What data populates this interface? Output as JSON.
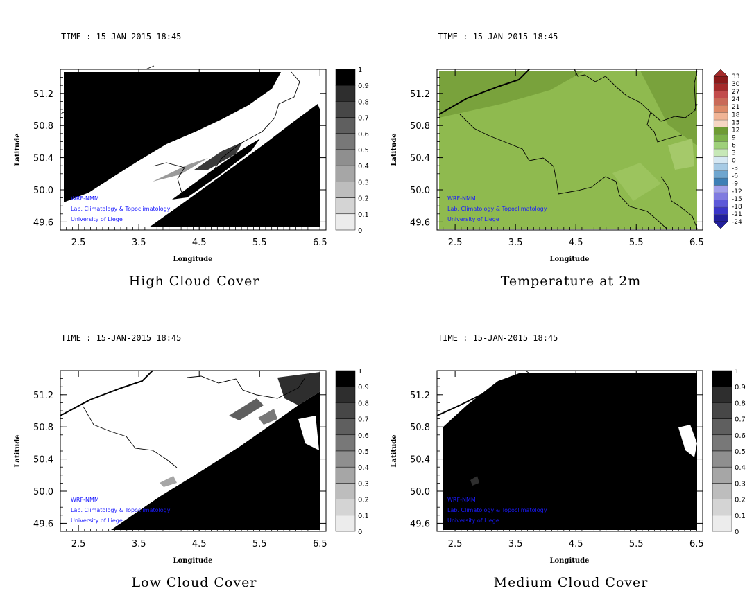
{
  "chart_data": [
    {
      "type": "heatmap",
      "time_label": "TIME : 15-JAN-2015 18:45",
      "title": "High Cloud Cover",
      "xlabel": "Longitude",
      "ylabel": "Latitude",
      "x_ticks": [
        "2.5",
        "3.5",
        "4.5",
        "5.5",
        "6.5"
      ],
      "y_ticks": [
        "51.2",
        "50.8",
        "50.4",
        "50.0",
        "49.6"
      ],
      "xlim": [
        2.2,
        6.6
      ],
      "ylim": [
        49.5,
        51.5
      ],
      "colorbar_ticks": [
        "1",
        "0.9",
        "0.8",
        "0.7",
        "0.6",
        "0.5",
        "0.4",
        "0.3",
        "0.2",
        "0.1",
        "0"
      ],
      "credits": [
        "WRF-NMM",
        "Lab. Climatology & Topoclimatology",
        "University of Liege"
      ]
    },
    {
      "type": "heatmap",
      "time_label": "TIME : 15-JAN-2015 18:45",
      "title": "Temperature at 2m",
      "xlabel": "Longitude",
      "ylabel": "Latitude",
      "x_ticks": [
        "2.5",
        "3.5",
        "4.5",
        "5.5",
        "6.5"
      ],
      "y_ticks": [
        "51.2",
        "50.8",
        "50.4",
        "50.0",
        "49.6"
      ],
      "xlim": [
        2.2,
        6.6
      ],
      "ylim": [
        49.5,
        51.5
      ],
      "colorbar_ticks": [
        "33",
        "30",
        "27",
        "24",
        "21",
        "18",
        "15",
        "12",
        "9",
        "6",
        "3",
        "0",
        "-3",
        "-6",
        "-9",
        "-12",
        "-15",
        "-18",
        "-21",
        "-24"
      ],
      "credits": [
        "WRF-NMM",
        "Lab. Climatology & Topoclimatology",
        "University of Liege"
      ]
    },
    {
      "type": "heatmap",
      "time_label": "TIME : 15-JAN-2015 18:45",
      "title": "Low Cloud Cover",
      "xlabel": "Longitude",
      "ylabel": "Latitude",
      "x_ticks": [
        "2.5",
        "3.5",
        "4.5",
        "5.5",
        "6.5"
      ],
      "y_ticks": [
        "51.2",
        "50.8",
        "50.4",
        "50.0",
        "49.6"
      ],
      "xlim": [
        2.2,
        6.6
      ],
      "ylim": [
        49.5,
        51.5
      ],
      "colorbar_ticks": [
        "1",
        "0.9",
        "0.8",
        "0.7",
        "0.6",
        "0.5",
        "0.4",
        "0.3",
        "0.2",
        "0.1",
        "0"
      ],
      "credits": [
        "WRF-NMM",
        "Lab. Climatology & Topoclimatology",
        "University of Liege"
      ]
    },
    {
      "type": "heatmap",
      "time_label": "TIME : 15-JAN-2015 18:45",
      "title": "Medium Cloud Cover",
      "xlabel": "Longitude",
      "ylabel": "Latitude",
      "x_ticks": [
        "2.5",
        "3.5",
        "4.5",
        "5.5",
        "6.5"
      ],
      "y_ticks": [
        "51.2",
        "50.8",
        "50.4",
        "50.0",
        "49.6"
      ],
      "xlim": [
        2.2,
        6.6
      ],
      "ylim": [
        49.5,
        51.5
      ],
      "colorbar_ticks": [
        "1",
        "0.9",
        "0.8",
        "0.7",
        "0.6",
        "0.5",
        "0.4",
        "0.3",
        "0.2",
        "0.1",
        "0"
      ],
      "credits": [
        "WRF-NMM",
        "Lab. Climatology & Topoclimatology",
        "University of Liege"
      ]
    }
  ],
  "colors": {
    "cloud_scale": [
      "#ffffff",
      "#ececec",
      "#d4d4d4",
      "#bdbdbd",
      "#a6a6a6",
      "#8f8f8f",
      "#787878",
      "#5f5f5f",
      "#474747",
      "#2e2e2e",
      "#000000"
    ],
    "temp_scale": [
      "#221f9c",
      "#3a35c8",
      "#5c58d8",
      "#7f7be0",
      "#a2a0ea",
      "#3d7fb5",
      "#6fa6cf",
      "#a7cbe5",
      "#d6e8f3",
      "#c7e8b7",
      "#9ed07a",
      "#7db24a",
      "#6e9b33",
      "#f6d6c3",
      "#f0b495",
      "#dd8a68",
      "#c96a58",
      "#c24c4c",
      "#a52a2a",
      "#8b1a1a"
    ],
    "temp_field": "#8fba4f",
    "temp_field_dark": "#79a23c",
    "credit_text": "#1a1aff"
  }
}
